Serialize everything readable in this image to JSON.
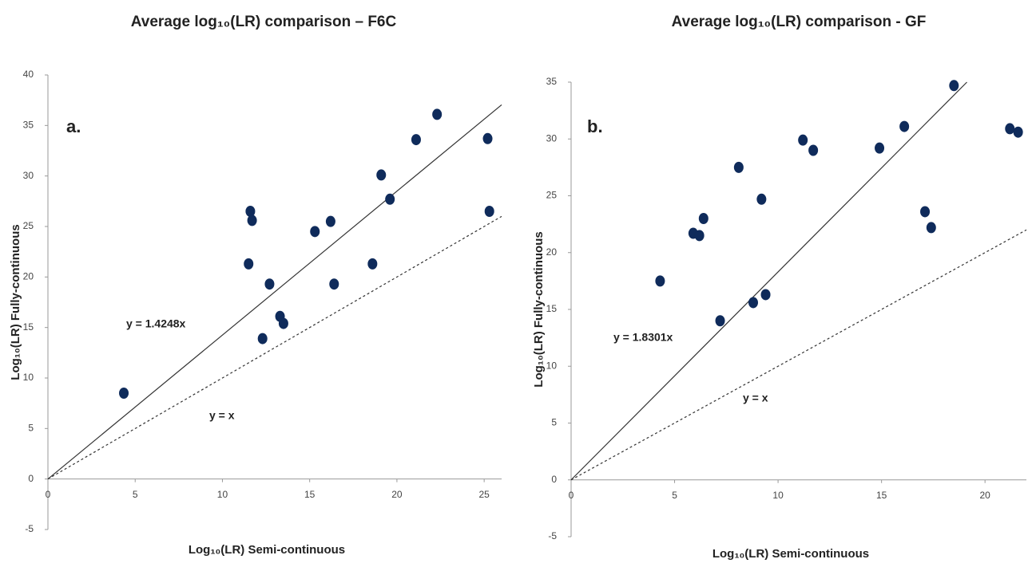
{
  "chart_data": [
    {
      "type": "scatter",
      "title": "Average log₁₀(LR) comparison – F6C",
      "panel_label": "a.",
      "x_label": "Log₁₀(LR) Semi-continuous",
      "y_label": "Log₁₀(LR) Fully-continuous",
      "xlim": [
        0,
        26
      ],
      "ylim": [
        -5,
        40
      ],
      "xticks": [
        0,
        5,
        10,
        15,
        20,
        25
      ],
      "yticks": [
        -5,
        0,
        5,
        10,
        15,
        20,
        25,
        30,
        35,
        40
      ],
      "series": [
        {
          "color": "#0f2b5b",
          "x": [
            4.35,
            11.5,
            11.6,
            11.7,
            12.7,
            12.3,
            13.3,
            13.5,
            15.3,
            16.2,
            16.4,
            18.6,
            19.1,
            19.6,
            21.1,
            22.3,
            25.2,
            25.3
          ],
          "values": [
            8.5,
            21.3,
            26.5,
            25.6,
            19.3,
            13.9,
            16.1,
            15.4,
            24.5,
            25.5,
            19.3,
            21.3,
            30.1,
            27.7,
            33.6,
            36.1,
            33.7,
            26.5
          ]
        }
      ],
      "fit_lines": [
        {
          "label": "y = 1.4248x",
          "slope": 1.4248,
          "dashed": false
        },
        {
          "label": "y = x",
          "slope": 1,
          "dashed": true
        }
      ]
    },
    {
      "type": "scatter",
      "title": "Average log₁₀(LR) comparison - GF",
      "panel_label": "b.",
      "x_label": "Log₁₀(LR) Semi-continuous",
      "y_label": "Log₁₀(LR) Fully-continuous",
      "xlim": [
        0,
        22
      ],
      "ylim": [
        -5,
        35
      ],
      "xticks": [
        0,
        5,
        10,
        15,
        20
      ],
      "yticks": [
        -5,
        0,
        5,
        10,
        15,
        20,
        25,
        30,
        35
      ],
      "series": [
        {
          "color": "#0f2b5b",
          "x": [
            4.3,
            5.9,
            6.2,
            6.4,
            8.1,
            7.2,
            8.8,
            9.2,
            9.4,
            11.2,
            11.7,
            14.9,
            16.1,
            17.1,
            17.4,
            18.5,
            21.2,
            21.6
          ],
          "values": [
            17.5,
            21.7,
            21.5,
            23.0,
            27.5,
            14.0,
            15.6,
            24.7,
            16.3,
            29.9,
            29.0,
            29.2,
            31.1,
            23.6,
            22.2,
            34.7,
            30.9,
            30.6
          ]
        }
      ],
      "fit_lines": [
        {
          "label": "y = 1.8301x",
          "slope": 1.8301,
          "dashed": false
        },
        {
          "label": "y = x",
          "slope": 1,
          "dashed": true
        }
      ]
    }
  ]
}
